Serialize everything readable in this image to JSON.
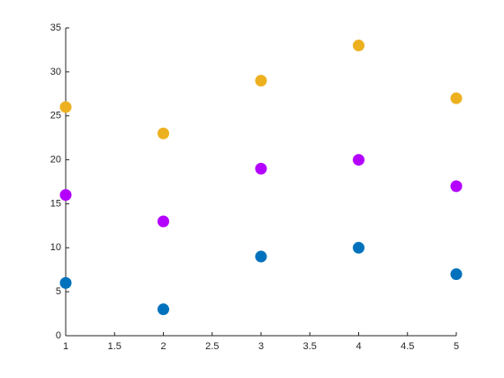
{
  "chart_data": {
    "type": "scatter",
    "x": [
      1,
      2,
      3,
      4,
      5
    ],
    "series": [
      {
        "color": "#0072bd",
        "values": [
          6,
          3,
          9,
          10,
          7
        ]
      },
      {
        "color": "#b400ff",
        "values": [
          16,
          13,
          19,
          20,
          17
        ]
      },
      {
        "color": "#edb120",
        "values": [
          26,
          23,
          29,
          33,
          27
        ]
      }
    ],
    "xlim": [
      1,
      5
    ],
    "xticks": [
      1,
      1.5,
      2,
      2.5,
      3,
      3.5,
      4,
      4.5,
      5
    ],
    "ylim": [
      0,
      35
    ],
    "yticks": [
      0,
      5,
      10,
      15,
      20,
      25,
      30,
      35
    ],
    "grid": false
  }
}
